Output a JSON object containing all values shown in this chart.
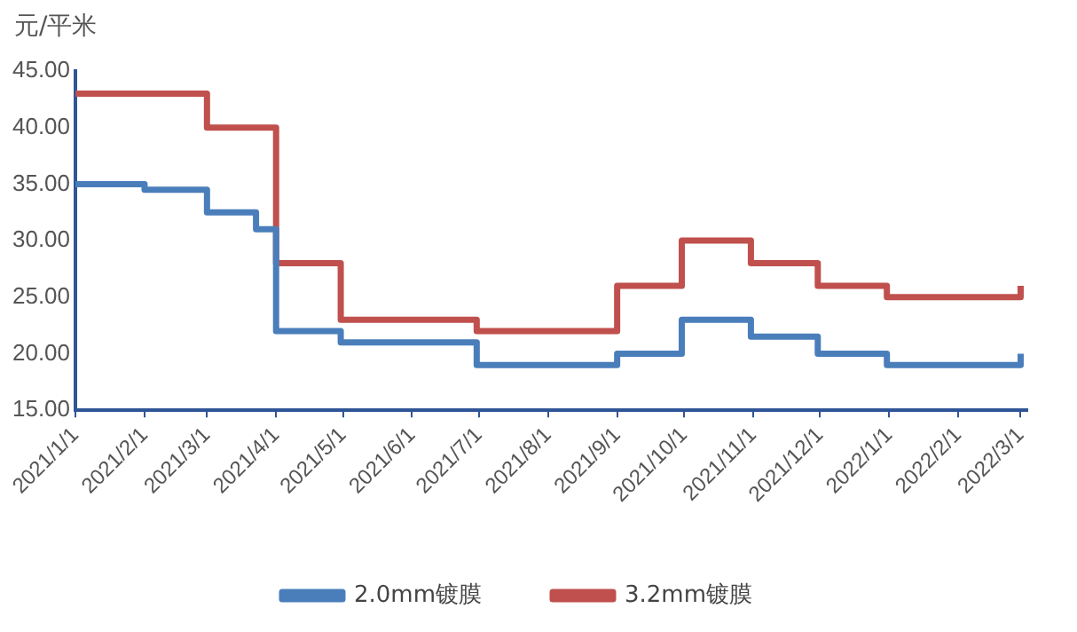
{
  "chart_data": {
    "type": "step",
    "ylabel": "元/平米",
    "x": [
      "2021-01-01",
      "2021-02-01",
      "2021-03-01",
      "2021-03-23",
      "2021-04-01",
      "2021-04-30",
      "2021-06-30",
      "2021-09-01",
      "2021-09-30",
      "2021-10-31",
      "2021-11-30",
      "2021-12-31",
      "2022-03-01"
    ],
    "series": [
      {
        "name": "2.0mm镀膜",
        "color": "#4a7ebb",
        "values": [
          35,
          34.5,
          32.5,
          31,
          22,
          21,
          19,
          20,
          23,
          21.5,
          20,
          19,
          20
        ]
      },
      {
        "name": "3.2mm镀膜",
        "color": "#c0504d",
        "x": [
          "2021-01-01",
          "2021-03-01",
          "2021-04-01",
          "2021-04-30",
          "2021-06-30",
          "2021-09-01",
          "2021-09-30",
          "2021-10-31",
          "2021-11-30",
          "2021-12-31",
          "2022-03-01"
        ],
        "values": [
          43,
          40,
          28,
          23,
          22,
          26,
          30,
          28,
          26,
          25,
          26
        ]
      }
    ],
    "xlim": [
      "2021-01-01",
      "2022-03-04"
    ],
    "xticks": [
      {
        "value": "2021-01-01",
        "label": "2021/1/1"
      },
      {
        "value": "2021-02-01",
        "label": "2021/2/1"
      },
      {
        "value": "2021-03-01",
        "label": "2021/3/1"
      },
      {
        "value": "2021-04-01",
        "label": "2021/4/1"
      },
      {
        "value": "2021-05-01",
        "label": "2021/5/1"
      },
      {
        "value": "2021-06-01",
        "label": "2021/6/1"
      },
      {
        "value": "2021-07-01",
        "label": "2021/7/1"
      },
      {
        "value": "2021-08-01",
        "label": "2021/8/1"
      },
      {
        "value": "2021-09-01",
        "label": "2021/9/1"
      },
      {
        "value": "2021-10-01",
        "label": "2021/10/1"
      },
      {
        "value": "2021-11-01",
        "label": "2021/11/1"
      },
      {
        "value": "2021-12-01",
        "label": "2021/12/1"
      },
      {
        "value": "2022-01-01",
        "label": "2022/1/1"
      },
      {
        "value": "2022-02-01",
        "label": "2022/2/1"
      },
      {
        "value": "2022-03-01",
        "label": "2022/3/1"
      }
    ],
    "ylim": [
      15,
      45
    ],
    "yticks": [
      {
        "value": 15,
        "label": "15.00"
      },
      {
        "value": 20,
        "label": "20.00"
      },
      {
        "value": 25,
        "label": "25.00"
      },
      {
        "value": 30,
        "label": "30.00"
      },
      {
        "value": 35,
        "label": "35.00"
      },
      {
        "value": 40,
        "label": "40.00"
      },
      {
        "value": 45,
        "label": "45.00"
      }
    ],
    "grid": false,
    "legend": "bottom",
    "marker": "none",
    "line_style": "solid"
  }
}
